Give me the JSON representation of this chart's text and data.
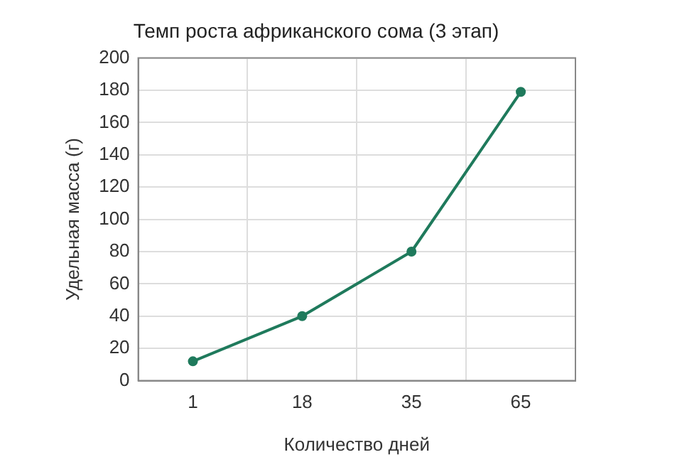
{
  "chart_data": {
    "type": "line",
    "title": "Темп роста африканского сома (3 этап)",
    "xlabel": "Количество дней",
    "ylabel": "Удельная масса (г)",
    "categories": [
      "1",
      "18",
      "35",
      "65"
    ],
    "series": [
      {
        "color": "#1f7a5c",
        "values": [
          12,
          40,
          80,
          179
        ]
      }
    ],
    "ylim": [
      0,
      200
    ],
    "yticks": [
      0,
      20,
      40,
      60,
      80,
      100,
      120,
      140,
      160,
      180,
      200
    ],
    "grid": true,
    "marker": "circle",
    "line_style": "solid",
    "legend": false
  }
}
